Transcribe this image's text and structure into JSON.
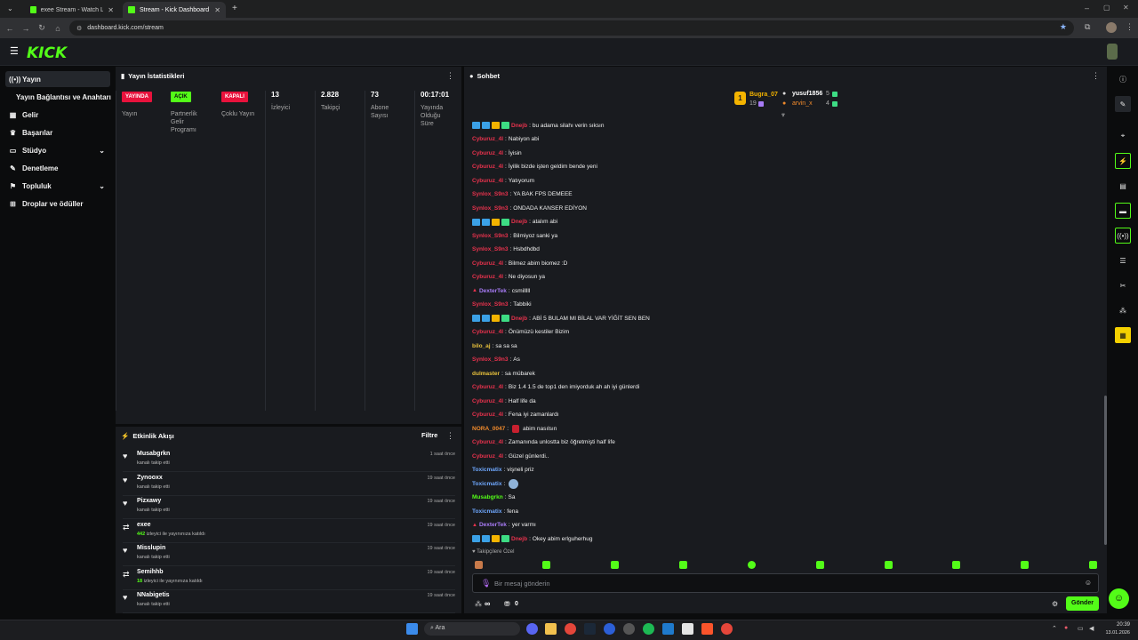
{
  "browser": {
    "tabs": [
      {
        "title": "exee Stream - Watch Live on Kic",
        "active": false
      },
      {
        "title": "Stream - Kick Dashboard",
        "active": true
      }
    ],
    "url": "dashboard.kick.com/stream"
  },
  "brand": {
    "logo": "KICK",
    "accent": "#53fc18"
  },
  "sidebar": {
    "items": [
      {
        "label": "Yayın",
        "icon": "broadcast-icon"
      },
      {
        "label": "Yayın Bağlantısı ve Anahtarı",
        "icon": ""
      },
      {
        "label": "Gelir",
        "icon": "money-icon"
      },
      {
        "label": "Başarılar",
        "icon": "trophy-icon"
      },
      {
        "label": "Stüdyo",
        "icon": "studio-icon"
      },
      {
        "label": "Denetleme",
        "icon": "wrench-icon"
      },
      {
        "label": "Topluluk",
        "icon": "people-icon"
      },
      {
        "label": "Droplar ve ödüller",
        "icon": "gift-icon"
      }
    ]
  },
  "stats": {
    "title": "Yayın İstatistikleri",
    "columns": [
      {
        "badge": "YAYINDA",
        "label": "Yayın"
      },
      {
        "badge": "AÇIK",
        "label": "Partnerlik Gelir Programı"
      },
      {
        "badge": "KAPALI",
        "label": "Çoklu Yayın"
      },
      {
        "value": "13",
        "label": "İzleyici"
      },
      {
        "value": "2.828",
        "label": "Takipçi"
      },
      {
        "value": "73",
        "label": "Abone Sayısı"
      },
      {
        "value": "00:17:01",
        "label": "Yayında Olduğu Süre"
      }
    ]
  },
  "events": {
    "title": "Etkinlik Akışı",
    "filter": "Filtre",
    "items": [
      {
        "name": "Musabgrkn",
        "desc": "kanalı takip etti",
        "highlight": "",
        "time": "1 saat önce",
        "icon": "heart-icon"
      },
      {
        "name": "Zynooxx",
        "desc": "kanalı takip etti",
        "highlight": "",
        "time": "19 saat önce",
        "icon": "heart-icon"
      },
      {
        "name": "Pizxawy",
        "desc": "kanalı takip etti",
        "highlight": "",
        "time": "19 saat önce",
        "icon": "heart-icon"
      },
      {
        "name": "exee",
        "desc": "izleyici ile yayınınıza katıldı",
        "highlight": "442",
        "time": "19 saat önce",
        "icon": "raid-icon"
      },
      {
        "name": "Misslupin",
        "desc": "kanalı takip etti",
        "highlight": "",
        "time": "19 saat önce",
        "icon": "heart-icon"
      },
      {
        "name": "Semihhb",
        "desc": "izleyici ile yayınınıza katıldı",
        "highlight": "18",
        "time": "19 saat önce",
        "icon": "raid-icon"
      },
      {
        "name": "NNabigetis",
        "desc": "kanalı takip etti",
        "highlight": "",
        "time": "19 saat önce",
        "icon": "heart-icon"
      }
    ]
  },
  "chat": {
    "title": "Sohbet",
    "leaders": [
      {
        "rank": "1",
        "name": "Bugra_07",
        "count": "19"
      },
      {
        "name": "yusuf1856",
        "count": "5"
      },
      {
        "name": "arvin_x",
        "count": "4"
      }
    ],
    "messages": [
      {
        "user": "Dnejb",
        "color": "#e8324d",
        "badges": true,
        "text": "bu adama silahı verin sıksın"
      },
      {
        "user": "Cyburuz_4l",
        "color": "#e8324d",
        "badges": false,
        "text": "Nabiyon abi"
      },
      {
        "user": "Cyburuz_4l",
        "color": "#e8324d",
        "badges": false,
        "text": "İyisin"
      },
      {
        "user": "Cyburuz_4l",
        "color": "#e8324d",
        "badges": false,
        "text": "İyilik bizde işten geldim bende yeni"
      },
      {
        "user": "Cyburuz_4l",
        "color": "#e8324d",
        "badges": false,
        "text": "Yatıyorum"
      },
      {
        "user": "Synlox_S9n3",
        "color": "#e8324d",
        "badges": false,
        "text": "YA BAK FPS DEMEEE"
      },
      {
        "user": "Synlox_S9n3",
        "color": "#e8324d",
        "badges": false,
        "text": "ONDADA KANSER EDİYON"
      },
      {
        "user": "Dnejb",
        "color": "#e8324d",
        "badges": true,
        "text": "atalım abi"
      },
      {
        "user": "Synlox_S9n3",
        "color": "#e8324d",
        "badges": false,
        "text": "Bilmiyoz sanki ya"
      },
      {
        "user": "Synlox_S9n3",
        "color": "#e8324d",
        "badges": false,
        "text": "Hsbdhdbd"
      },
      {
        "user": "Cyburuz_4l",
        "color": "#e8324d",
        "badges": false,
        "text": "Bilmez abim biomez :D"
      },
      {
        "user": "Cyburuz_4l",
        "color": "#e8324d",
        "badges": false,
        "text": "Ne diyosun ya"
      },
      {
        "user": "DexterTek",
        "color": "#a77bf5",
        "badges": false,
        "text": "csmilllll"
      },
      {
        "user": "Synlox_S9n3",
        "color": "#e8324d",
        "badges": false,
        "text": "Tabbiki"
      },
      {
        "user": "Dnejb",
        "color": "#e8324d",
        "badges": true,
        "text": "ABİ 5 BULAM MI BİLAL VAR YİĞİT SEN BEN"
      },
      {
        "user": "Cyburuz_4l",
        "color": "#e8324d",
        "badges": false,
        "text": "Önümüzü kestiler Bizim"
      },
      {
        "user": "bilo_aj",
        "color": "#e8c13c",
        "badges": false,
        "text": "sa sa sa"
      },
      {
        "user": "Synlox_S9n3",
        "color": "#e8324d",
        "badges": false,
        "text": "As"
      },
      {
        "user": "dulmaster",
        "color": "#e8c13c",
        "badges": false,
        "text": "sa mübarek"
      },
      {
        "user": "Cyburuz_4l",
        "color": "#e8324d",
        "badges": false,
        "text": "Biz 1.4 1.5 de top1 den imiyorduk ah ah iyi günlerdi"
      },
      {
        "user": "Cyburuz_4l",
        "color": "#e8324d",
        "badges": false,
        "text": "Half life da"
      },
      {
        "user": "Cyburuz_4l",
        "color": "#e8324d",
        "badges": false,
        "text": "Fena iyi zamanlardı"
      },
      {
        "user": "NORA_0047",
        "color": "#f08a2c",
        "badges": false,
        "text": "abim nasılsın"
      },
      {
        "user": "Cyburuz_4l",
        "color": "#e8324d",
        "badges": false,
        "text": "Zamanında unlostta biz öğretmişti half life"
      },
      {
        "user": "Cyburuz_4l",
        "color": "#e8324d",
        "badges": false,
        "text": "Güzel günlerdi.."
      },
      {
        "user": "Toxicmatix",
        "color": "#6fa8ff",
        "badges": false,
        "text": "vişneli priz"
      },
      {
        "user": "Toxicmatix",
        "color": "#6fa8ff",
        "badges": false,
        "text": ""
      },
      {
        "user": "Musabgrkn",
        "color": "#53fc18",
        "badges": false,
        "text": "Sa"
      },
      {
        "user": "Toxicmatix",
        "color": "#6fa8ff",
        "badges": false,
        "text": "fena"
      },
      {
        "user": "DexterTek",
        "color": "#a77bf5",
        "badges": false,
        "text": "yer varmı"
      },
      {
        "user": "Dnejb",
        "color": "#e8324d",
        "badges": true,
        "text": "Okey abim erlguherhug"
      }
    ],
    "followers_only": "Takipçilere Özel",
    "input_placeholder": "Bir mesaj gönderin",
    "points": "∞",
    "count": "0",
    "send_label": "Gönder"
  },
  "taskbar": {
    "search": "Ara",
    "time": "20:39",
    "date": "13.01.2026"
  }
}
